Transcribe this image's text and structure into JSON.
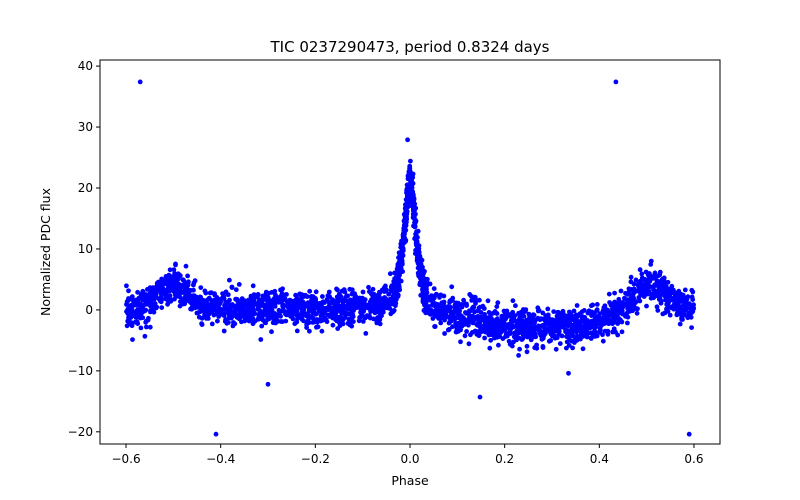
{
  "chart_data": {
    "type": "scatter",
    "title": "TIC 0237290473, period 0.8324 days",
    "xlabel": "Phase",
    "ylabel": "Normalized PDC flux",
    "xlim": [
      -0.655,
      0.655
    ],
    "ylim": [
      -22,
      41
    ],
    "grid": false,
    "legend": "none",
    "marker_color": "#0000ff",
    "x_ticks": [
      -0.6,
      -0.4,
      -0.2,
      0.0,
      0.2,
      0.4,
      0.6
    ],
    "x_tick_labels": [
      "−0.6",
      "−0.4",
      "−0.2",
      "0.0",
      "0.2",
      "0.4",
      "0.6"
    ],
    "y_ticks": [
      -20,
      -10,
      0,
      10,
      20,
      30,
      40
    ],
    "y_tick_labels": [
      "−20",
      "−10",
      "0",
      "10",
      "20",
      "30",
      "40"
    ],
    "light_curve_profile": [
      [
        -0.6,
        0.0
      ],
      [
        -0.56,
        0.5
      ],
      [
        -0.53,
        2.5
      ],
      [
        -0.5,
        4.5
      ],
      [
        -0.47,
        2.5
      ],
      [
        -0.44,
        0.5
      ],
      [
        -0.3,
        0.0
      ],
      [
        -0.15,
        0.0
      ],
      [
        -0.06,
        0.8
      ],
      [
        -0.03,
        3.0
      ],
      [
        -0.015,
        10.0
      ],
      [
        -0.005,
        19.0
      ],
      [
        0.0,
        22.0
      ],
      [
        0.005,
        19.0
      ],
      [
        0.015,
        10.0
      ],
      [
        0.03,
        3.0
      ],
      [
        0.05,
        0.0
      ],
      [
        0.1,
        -1.0
      ],
      [
        0.2,
        -2.5
      ],
      [
        0.3,
        -3.0
      ],
      [
        0.38,
        -2.5
      ],
      [
        0.42,
        -1.5
      ],
      [
        0.46,
        1.0
      ],
      [
        0.49,
        3.5
      ],
      [
        0.52,
        4.0
      ],
      [
        0.55,
        2.0
      ],
      [
        0.58,
        0.5
      ],
      [
        0.6,
        0.0
      ]
    ],
    "outliers": [
      {
        "x": -0.57,
        "y": 37.4
      },
      {
        "x": 0.435,
        "y": 37.4
      },
      {
        "x": -0.41,
        "y": -20.4
      },
      {
        "x": 0.59,
        "y": -20.4
      },
      {
        "x": -0.3,
        "y": -12.2
      },
      {
        "x": 0.148,
        "y": -14.3
      },
      {
        "x": 0.335,
        "y": -10.4
      },
      {
        "x": -0.005,
        "y": 27.9
      }
    ]
  }
}
